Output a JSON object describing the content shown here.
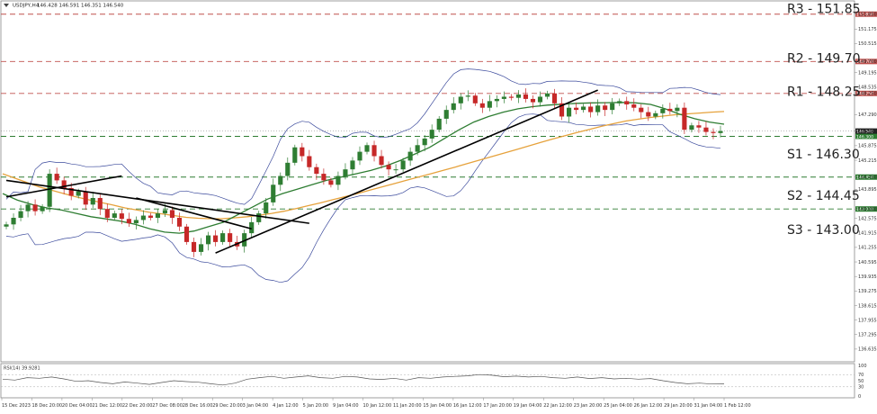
{
  "header": {
    "symbol": "USDJPY,H4",
    "ohlc": "146.428 146.591 146.351 146.540"
  },
  "rsi": {
    "label": "RSI(14) 39.9281",
    "levels": [
      "100",
      "70",
      "50",
      "30",
      "0"
    ],
    "values": [
      55,
      52,
      60,
      58,
      62,
      56,
      48,
      50,
      44,
      40,
      46,
      42,
      38,
      44,
      50,
      47,
      45,
      40,
      36,
      42,
      55,
      60,
      64,
      58,
      62,
      66,
      60,
      58,
      64,
      62,
      56,
      54,
      58,
      52,
      60,
      58,
      62,
      64,
      66,
      70,
      68,
      63,
      65,
      62,
      64,
      60,
      58,
      62,
      57,
      60,
      56,
      58,
      55,
      57,
      50,
      44,
      40,
      42,
      39,
      40
    ]
  },
  "levels": {
    "r3": {
      "label": "R3 - 151.85",
      "value": 151.85,
      "tag": "151.850",
      "color": "#c0504d"
    },
    "r2": {
      "label": "R2 - 149.70",
      "value": 149.7,
      "tag": "149.700",
      "color": "#c0504d"
    },
    "r1": {
      "label": "R1 - 148.25",
      "value": 148.25,
      "tag": "148.250",
      "color": "#c0504d"
    },
    "s1": {
      "label": "S1 - 146.30",
      "value": 146.3,
      "tag": "146.300",
      "color": "#2e7d32"
    },
    "s2": {
      "label": "S2 - 144.45",
      "value": 144.45,
      "tag": "144.450",
      "color": "#2e7d32"
    },
    "s3": {
      "label": "S3 - 143.00",
      "value": 143.0,
      "tag": "143.000",
      "color": "#2e7d32"
    }
  },
  "current_price": {
    "value": 146.54,
    "tag": "146.540"
  },
  "colors": {
    "up": "#2e7d32",
    "down": "#c62828",
    "sma_long": "#e6a23c",
    "sma_mid": "#2e7d32",
    "bands": "#3b4a9c",
    "trend": "#000000"
  },
  "chart_data": {
    "type": "line",
    "title": "",
    "xlabel": "",
    "ylabel": "",
    "ylim": [
      136.14,
      152.33
    ],
    "y_ticks": [
      "151.850",
      "151.175",
      "150.515",
      "149.700",
      "149.195",
      "148.535",
      "148.250",
      "147.290",
      "146.540",
      "145.875",
      "145.215",
      "144.450",
      "143.895",
      "143.000",
      "142.575",
      "141.915",
      "141.255",
      "140.595",
      "139.935",
      "139.275",
      "138.615",
      "137.955",
      "137.295",
      "136.635"
    ],
    "x_ticks": [
      "15 Dec 2023",
      "18 Dec 20:00",
      "20 Dec 04:00",
      "21 Dec 12:00",
      "22 Dec 20:00",
      "27 Dec 08:00",
      "28 Dec 16:00",
      "29 Dec 20:00",
      "3 Jan 04:00",
      "4 Jan 12:00",
      "5 Jan 20:00",
      "9 Jan 04:00",
      "10 Jan 12:00",
      "11 Jan 20:00",
      "15 Jan 04:00",
      "16 Jan 12:00",
      "17 Jan 20:00",
      "19 Jan 04:00",
      "22 Jan 12:00",
      "23 Jan 20:00",
      "25 Jan 04:00",
      "26 Jan 12:00",
      "29 Jan 20:00",
      "31 Jan 04:00",
      "1 Feb 12:00"
    ],
    "close": [
      142.3,
      142.6,
      142.9,
      143.2,
      142.9,
      143.1,
      144.6,
      144.3,
      143.95,
      143.6,
      143.8,
      143.2,
      143.5,
      143.0,
      142.6,
      142.8,
      142.55,
      142.35,
      142.5,
      142.7,
      142.6,
      142.8,
      142.95,
      142.6,
      142.2,
      141.5,
      141.05,
      141.4,
      141.8,
      141.5,
      141.9,
      141.5,
      141.3,
      141.9,
      142.4,
      142.8,
      143.3,
      144.1,
      144.5,
      145.1,
      145.8,
      145.4,
      144.9,
      144.6,
      144.3,
      144.1,
      144.5,
      144.8,
      145.2,
      145.6,
      145.9,
      145.4,
      145.0,
      144.8,
      144.8,
      145.2,
      145.6,
      145.9,
      146.2,
      146.6,
      147.1,
      147.5,
      147.8,
      148.1,
      148.15,
      147.8,
      147.6,
      147.9,
      148.0,
      148.1,
      148.05,
      148.2,
      148.0,
      147.85,
      148.1,
      148.25,
      147.8,
      147.2,
      147.6,
      147.5,
      147.65,
      147.4,
      147.7,
      147.5,
      147.8,
      147.9,
      147.75,
      147.6,
      147.4,
      147.2,
      147.35,
      147.55,
      147.45,
      147.6,
      146.6,
      146.8,
      146.7,
      146.5,
      146.45,
      146.54
    ],
    "series": [
      {
        "name": "",
        "values": [
          144.6,
          144.4,
          144.2,
          144.0,
          143.85,
          143.7,
          143.55,
          143.42,
          143.3,
          143.18,
          143.05,
          142.95,
          142.85,
          142.78,
          142.7,
          142.62,
          142.58,
          142.56,
          142.56,
          142.6,
          142.65,
          142.72,
          142.8,
          142.9,
          143.02,
          143.15,
          143.28,
          143.42,
          143.56,
          143.7,
          143.85,
          144.0,
          144.15,
          144.3,
          144.45,
          144.6,
          144.75,
          144.9,
          145.06,
          145.22,
          145.38,
          145.54,
          145.7,
          145.86,
          146.02,
          146.18,
          146.33,
          146.48,
          146.62,
          146.76,
          146.88,
          147.0,
          147.08,
          147.16,
          147.22,
          147.28,
          147.32,
          147.36,
          147.4,
          147.43
        ]
      },
      {
        "name": "",
        "values": [
          143.7,
          143.4,
          143.2,
          143.05,
          142.95,
          142.8,
          142.65,
          142.55,
          142.45,
          142.3,
          142.1,
          141.95,
          141.9,
          142.0,
          142.2,
          142.4,
          142.75,
          143.1,
          143.45,
          143.7,
          143.9,
          144.1,
          144.3,
          144.45,
          144.6,
          144.75,
          144.95,
          145.2,
          145.5,
          145.8,
          146.2,
          146.6,
          146.95,
          147.2,
          147.4,
          147.55,
          147.65,
          147.72,
          147.76,
          147.8,
          147.82,
          147.83,
          147.84,
          147.82,
          147.75,
          147.55,
          147.3,
          147.1,
          146.95,
          146.85
        ]
      }
    ],
    "trendlines": [
      {
        "from": [
          0,
          143.55
        ],
        "to": [
          16,
          144.5
        ]
      },
      {
        "from": [
          0,
          144.3
        ],
        "to": [
          42,
          142.35
        ]
      },
      {
        "from": [
          18,
          143.5
        ],
        "to": [
          34,
          142.1
        ]
      },
      {
        "from": [
          29,
          141.0
        ],
        "to": [
          82,
          148.4
        ]
      }
    ]
  }
}
